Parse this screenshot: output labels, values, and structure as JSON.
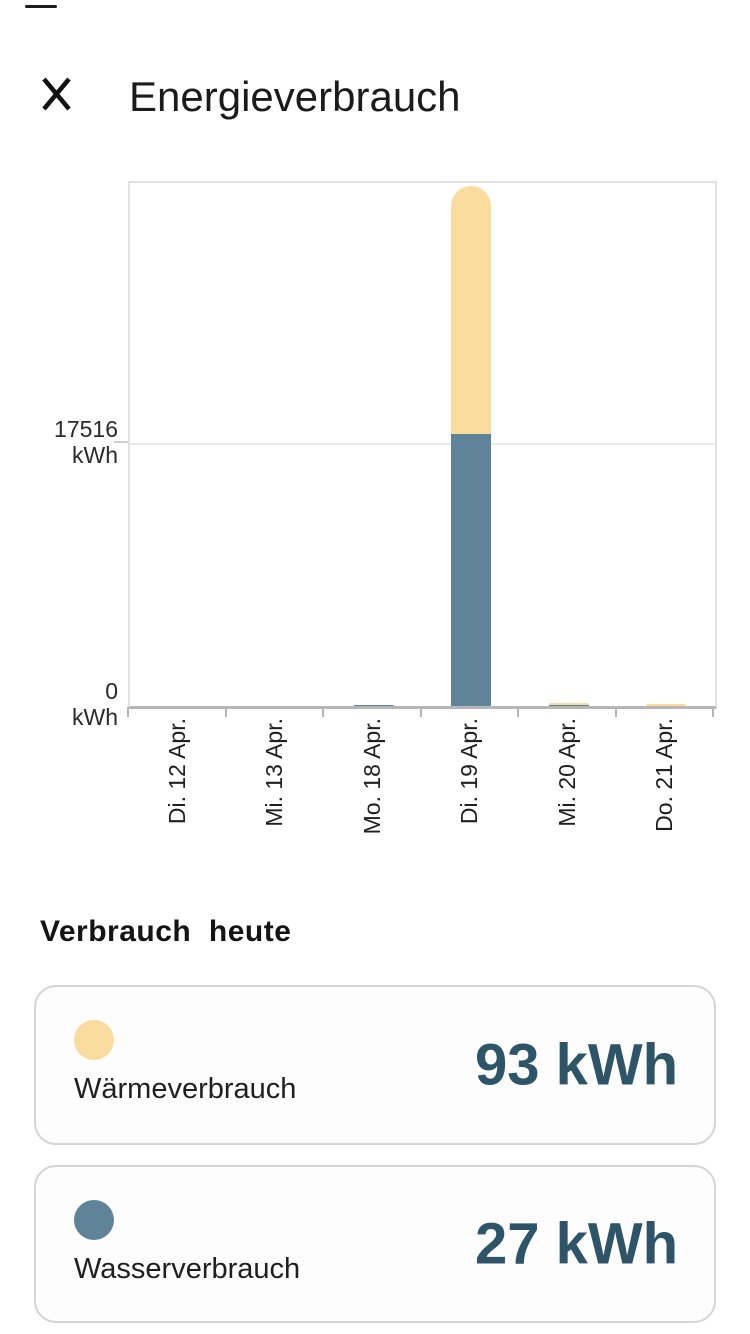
{
  "header": {
    "title": "Energieverbrauch",
    "close_icon": "x-close"
  },
  "chart_data": {
    "type": "bar",
    "stacked": true,
    "title": "",
    "xlabel": "",
    "ylabel": "kWh",
    "categories": [
      "Di. 12 Apr.",
      "Mi. 13 Apr.",
      "Mo. 18 Apr.",
      "Di. 19 Apr.",
      "Mi. 20 Apr.",
      "Do. 21 Apr."
    ],
    "series": [
      {
        "name": "Wasserverbrauch",
        "color": "#5f8399",
        "values": [
          0,
          0,
          100,
          18180,
          100,
          0
        ]
      },
      {
        "name": "Wärmeverbrauch",
        "color": "#fadc9e",
        "values": [
          0,
          0,
          0,
          16650,
          130,
          130
        ]
      }
    ],
    "ylim": [
      0,
      35000
    ],
    "grid_value": 17516,
    "grid_on": true,
    "y_ticks": [
      {
        "value": "17516",
        "unit": "kWh",
        "kwh": 17516
      },
      {
        "value": "0",
        "unit": "kWh",
        "kwh": 0
      }
    ],
    "legend_position": "cards-below"
  },
  "summary": {
    "heading": "Verbrauch  heute",
    "cards": [
      {
        "label": "Wärmeverbrauch",
        "value": "93 kWh",
        "dot_color": "#fadc9e"
      },
      {
        "label": "Wasserverbrauch",
        "value": "27 kWh",
        "dot_color": "#5f8399"
      }
    ]
  },
  "colors": {
    "heat_yellow": "#fadc9e",
    "water_blue": "#5f8399",
    "value_teal": "#2e5468",
    "plot_border": "#e2e2e2",
    "axis_gray": "#b6b6b6",
    "grid_gray": "#e9e9e9",
    "card_border": "#d5d5d5"
  }
}
